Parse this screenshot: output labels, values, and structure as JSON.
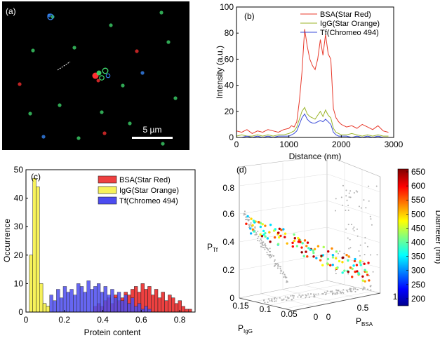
{
  "chart_data": [
    {
      "panel": "(a)",
      "type": "image",
      "scalebar_label": "5 µm",
      "colors": {
        "background": "#000000",
        "bsa": "#ff3030",
        "igg": "#40e070",
        "tf": "#3a8cff"
      }
    },
    {
      "panel": "(b)",
      "type": "line",
      "xlabel": "Distance (nm)",
      "ylabel": "Intensity (a.u.)",
      "xlim": [
        0,
        3000
      ],
      "ylim": [
        0,
        100
      ],
      "xticks": [
        0,
        1000,
        2000,
        3000
      ],
      "yticks": [
        0,
        20,
        40,
        60,
        80,
        100
      ],
      "legend_position": "top-right",
      "x": [
        0,
        100,
        200,
        300,
        400,
        500,
        600,
        700,
        800,
        900,
        1000,
        1050,
        1100,
        1150,
        1200,
        1250,
        1300,
        1350,
        1400,
        1450,
        1500,
        1550,
        1600,
        1650,
        1700,
        1750,
        1800,
        1850,
        1900,
        1950,
        2000,
        2100,
        2200,
        2300,
        2400,
        2500,
        2600,
        2700,
        2800,
        2900
      ],
      "series": [
        {
          "name": "BSA(Star Red)",
          "color": "#e8392b",
          "values": [
            5,
            4,
            6,
            3,
            5,
            4,
            6,
            5,
            4,
            6,
            7,
            9,
            8,
            12,
            28,
            50,
            83,
            70,
            60,
            55,
            52,
            60,
            75,
            63,
            79,
            64,
            60,
            22,
            15,
            12,
            10,
            8,
            9,
            7,
            10,
            8,
            6,
            9,
            5,
            4
          ]
        },
        {
          "name": "IgG(Star Orange)",
          "color": "#9bb52a",
          "values": [
            1,
            2,
            1,
            1,
            2,
            1,
            2,
            1,
            2,
            2,
            3,
            4,
            5,
            8,
            14,
            20,
            23,
            18,
            16,
            15,
            14,
            17,
            20,
            16,
            21,
            17,
            15,
            7,
            4,
            3,
            2,
            2,
            3,
            2,
            1,
            2,
            1,
            2,
            1,
            1
          ]
        },
        {
          "name": "Tf(Chromeo 494)",
          "color": "#3a4bd8",
          "values": [
            0,
            0,
            1,
            0,
            1,
            0,
            1,
            0,
            1,
            1,
            1,
            2,
            3,
            5,
            10,
            15,
            18,
            14,
            12,
            11,
            11,
            12,
            13,
            12,
            14,
            12,
            10,
            4,
            2,
            1,
            1,
            1,
            0,
            1,
            0,
            1,
            0,
            1,
            0,
            0
          ]
        }
      ]
    },
    {
      "panel": "(c)",
      "type": "bar",
      "xlabel": "Protein content",
      "ylabel": "Occurrence",
      "xlim": [
        0,
        0.88
      ],
      "ylim": [
        0,
        50
      ],
      "xticks": [
        0,
        0.2,
        0.4,
        0.6,
        0.8
      ],
      "yticks": [
        0,
        10,
        20,
        30,
        40,
        50
      ],
      "bin_width": 0.0176,
      "legend_position": "top-right",
      "series": [
        {
          "name": "BSA(Star Red)",
          "color": "#ee4040",
          "values": [
            0,
            0,
            0,
            0,
            0,
            0,
            0,
            0,
            0,
            0,
            0,
            0,
            0,
            0,
            0,
            0,
            0,
            0,
            0,
            0,
            2,
            3,
            2,
            4,
            5,
            3,
            6,
            4,
            5,
            7,
            6,
            8,
            9,
            7,
            10,
            8,
            9,
            6,
            8,
            5,
            7,
            4,
            6,
            5,
            3,
            4,
            2,
            1,
            1,
            0
          ]
        },
        {
          "name": "IgG(Star Orange)",
          "color": "#f7f25a",
          "values": [
            0,
            20,
            47,
            44,
            10,
            3,
            2,
            0,
            0,
            0,
            0,
            0,
            0,
            0,
            0,
            0,
            0,
            0,
            0,
            0,
            0,
            0,
            0,
            0,
            0,
            0,
            0,
            0,
            0,
            0,
            0,
            0,
            0,
            0,
            0,
            0,
            0,
            0,
            0,
            0,
            0,
            0,
            0,
            0,
            0,
            0,
            0,
            0,
            0,
            0
          ]
        },
        {
          "name": "Tf(Chromeo 494)",
          "color": "#4c4cf0",
          "values": [
            0,
            0,
            0,
            5,
            4,
            3,
            2,
            6,
            4,
            8,
            5,
            9,
            7,
            8,
            6,
            10,
            9,
            7,
            11,
            8,
            9,
            10,
            7,
            9,
            6,
            8,
            5,
            7,
            4,
            6,
            3,
            5,
            2,
            3,
            1,
            2,
            1,
            0,
            0,
            0,
            0,
            0,
            0,
            0,
            0,
            0,
            0,
            0,
            0,
            0
          ]
        }
      ]
    },
    {
      "panel": "(d)",
      "type": "scatter",
      "xlabel": "P",
      "xlabel_sub": "IgG",
      "ylabel": "P",
      "ylabel_sub": "BSA",
      "zlabel": "P",
      "zlabel_sub": "Tf",
      "xticks": [
        "0.15",
        "0.1",
        "0.05",
        "0"
      ],
      "yticks": [
        "0",
        "0.5",
        "1"
      ],
      "zticks": [
        "0",
        "0.2",
        "0.4",
        "0.6",
        "0.8"
      ],
      "colorbar_label": "Diameter (nm)",
      "colorbar_range": [
        175,
        660
      ],
      "colorbar_ticks": [
        200,
        250,
        300,
        350,
        400,
        450,
        500,
        550,
        600,
        650
      ],
      "projection_color": "#b0b0b0"
    }
  ]
}
